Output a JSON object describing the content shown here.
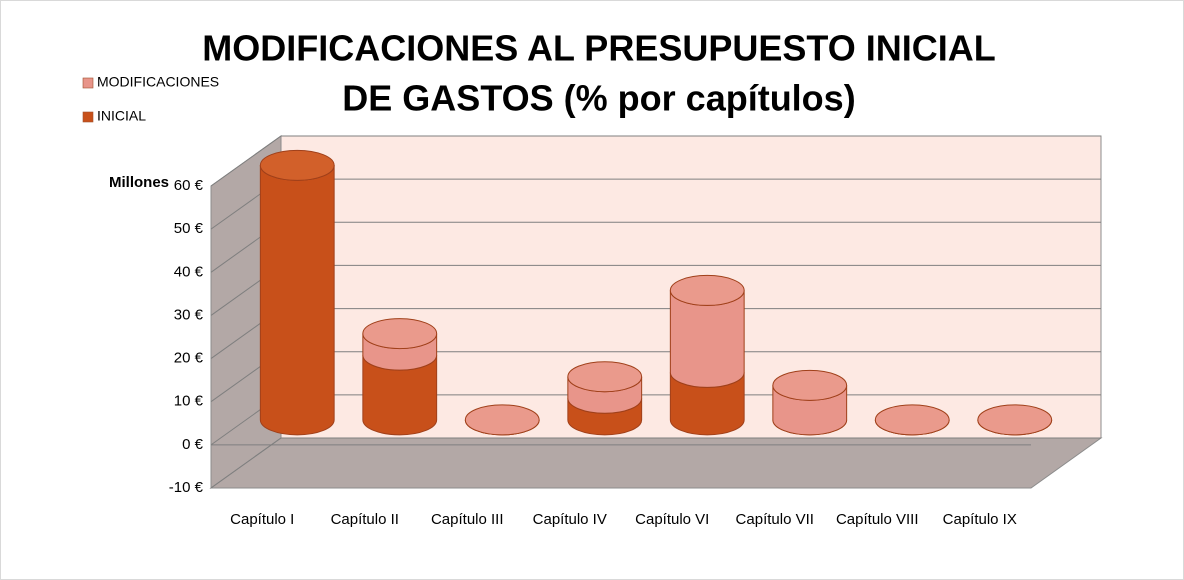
{
  "chart_data": {
    "type": "bar3d-cylinder-stacked",
    "title": [
      "MODIFICACIONES AL PRESUPUESTO INICIAL",
      "DE GASTOS (% por capítulos)"
    ],
    "y_label": "Millones",
    "categories": [
      "Capítulo I",
      "Capítulo II",
      "Capítulo III",
      "Capítulo IV",
      "Capítulo VI",
      "Capítulo VII",
      "Capítulo VIII",
      "Capítulo IX"
    ],
    "series": [
      {
        "name": "INICIAL",
        "color": "#c8501a",
        "values": [
          59,
          15,
          0,
          5,
          11,
          0,
          0,
          0
        ]
      },
      {
        "name": "MODIFICACIONES",
        "color": "#e8958a",
        "values": [
          0,
          5,
          0,
          5,
          19,
          8,
          0,
          0
        ]
      }
    ],
    "ylim": [
      -10,
      60
    ],
    "yticks": [
      {
        "value": -10,
        "label": "-10 €"
      },
      {
        "value": 0,
        "label": "0 €"
      },
      {
        "value": 10,
        "label": "10 €"
      },
      {
        "value": 20,
        "label": "20 €"
      },
      {
        "value": 30,
        "label": "30 €"
      },
      {
        "value": 40,
        "label": "40 €"
      },
      {
        "value": 50,
        "label": "50 €"
      },
      {
        "value": 60,
        "label": "60 €"
      }
    ],
    "grid": true,
    "stacked": true,
    "legend": "top-left"
  }
}
